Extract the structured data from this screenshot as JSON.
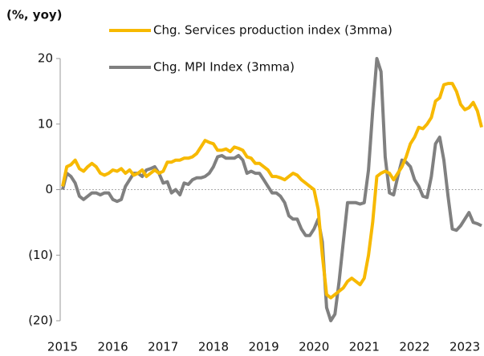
{
  "chart_data": {
    "type": "line",
    "y_axis_label": "(%, yoy)",
    "categories": [
      "2015",
      null,
      null,
      null,
      null,
      null,
      null,
      null,
      null,
      null,
      null,
      null,
      "2016",
      null,
      null,
      null,
      null,
      null,
      null,
      null,
      null,
      null,
      null,
      null,
      "2017",
      null,
      null,
      null,
      null,
      null,
      null,
      null,
      null,
      null,
      null,
      null,
      "2018",
      null,
      null,
      null,
      null,
      null,
      null,
      null,
      null,
      null,
      null,
      null,
      "2019",
      null,
      null,
      null,
      null,
      null,
      null,
      null,
      null,
      null,
      null,
      null,
      "2020",
      null,
      null,
      null,
      null,
      null,
      null,
      null,
      null,
      null,
      null,
      null,
      "2021",
      null,
      null,
      null,
      null,
      null,
      null,
      null,
      null,
      null,
      null,
      null,
      "2022",
      null,
      null,
      null,
      null,
      null,
      null,
      null,
      null,
      null,
      null,
      null,
      "2023",
      null,
      null,
      null,
      null
    ],
    "series": [
      {
        "name": "Chg. Services production index (3mma)",
        "color": "#f7b900",
        "values": [
          0.5,
          3.5,
          3.8,
          4.5,
          3.2,
          2.8,
          3.5,
          4.0,
          3.5,
          2.5,
          2.2,
          2.5,
          3.0,
          2.8,
          3.2,
          2.5,
          3.0,
          2.2,
          2.5,
          3.0,
          2.0,
          2.5,
          3.0,
          2.5,
          2.8,
          4.2,
          4.2,
          4.5,
          4.5,
          4.8,
          4.8,
          5.0,
          5.5,
          6.5,
          7.5,
          7.2,
          7.0,
          6.0,
          6.0,
          6.2,
          5.8,
          6.5,
          6.3,
          6.0,
          5.0,
          4.8,
          4.0,
          4.0,
          3.5,
          3.0,
          2.0,
          2.0,
          1.8,
          1.5,
          2.0,
          2.5,
          2.2,
          1.5,
          1.0,
          0.5,
          0,
          -3,
          -10,
          -16,
          -16.5,
          -16,
          -15.5,
          -15,
          -14,
          -13.5,
          -14,
          -14.5,
          -13.5,
          -10,
          -5,
          2,
          2.5,
          2.8,
          2.5,
          1.5,
          2.5,
          3.5,
          5,
          7,
          8,
          9.5,
          9.3,
          10,
          11,
          13.5,
          14,
          16,
          16.2,
          16.2,
          15,
          13,
          12.2,
          12.5,
          13.3,
          12.0,
          9.5
        ]
      },
      {
        "name": "Chg. MPI Index (3mma)",
        "color": "#808080",
        "values": [
          0,
          2.5,
          2.0,
          1.0,
          -1.0,
          -1.5,
          -1.0,
          -0.5,
          -0.5,
          -0.8,
          -0.5,
          -0.5,
          -1.5,
          -1.8,
          -1.5,
          0.5,
          1.5,
          2.5,
          2.5,
          2.0,
          3.0,
          3.2,
          3.5,
          2.5,
          1.0,
          1.2,
          -0.5,
          0,
          -0.8,
          1.0,
          0.8,
          1.5,
          1.8,
          1.8,
          2.0,
          2.5,
          3.5,
          5.0,
          5.2,
          4.8,
          4.8,
          4.8,
          5.2,
          4.5,
          2.5,
          2.8,
          2.5,
          2.5,
          1.5,
          0.5,
          -0.5,
          -0.5,
          -1.0,
          -2.0,
          -4.0,
          -4.5,
          -4.5,
          -6,
          -7,
          -7,
          -6,
          -4.5,
          -8,
          -18,
          -20,
          -19,
          -14,
          -8,
          -2,
          -2,
          -2,
          -2.2,
          -2,
          3,
          12,
          20,
          18,
          5,
          -0.5,
          -0.8,
          2,
          4.5,
          4.2,
          3.5,
          1.5,
          0.5,
          -1.0,
          -1.2,
          2,
          7,
          8,
          4.5,
          -1,
          -6,
          -6.2,
          -5.5,
          -4.5,
          -3.5,
          -5,
          -5.2,
          -5.5
        ]
      }
    ],
    "ylim": [
      -20,
      20
    ],
    "yticks": [
      {
        "value": -20,
        "label": "(20)"
      },
      {
        "value": -10,
        "label": "(10)"
      },
      0,
      10,
      20
    ],
    "zero_line": true
  }
}
